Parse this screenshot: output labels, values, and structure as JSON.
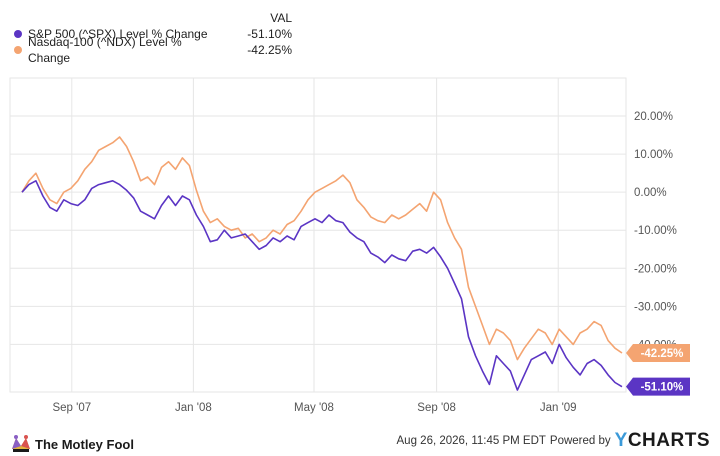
{
  "legend": {
    "header": "VAL",
    "items": [
      {
        "name": "S&P 500 (^SPX) Level % Change",
        "value": "-51.10%",
        "color": "#5b35c4"
      },
      {
        "name": "Nasdaq-100 (^NDX) Level % Change",
        "value": "-42.25%",
        "color": "#f4a471"
      }
    ]
  },
  "chart_data": {
    "type": "line",
    "title": "",
    "xlabel": "",
    "ylabel": "",
    "x_ticks": [
      "Sep '07",
      "Jan '08",
      "May '08",
      "Sep '08",
      "Jan '09"
    ],
    "x": [
      "2007-07-13",
      "2007-07-20",
      "2007-07-27",
      "2007-08-03",
      "2007-08-10",
      "2007-08-17",
      "2007-08-24",
      "2007-08-31",
      "2007-09-07",
      "2007-09-14",
      "2007-09-21",
      "2007-09-28",
      "2007-10-05",
      "2007-10-12",
      "2007-10-19",
      "2007-10-26",
      "2007-11-02",
      "2007-11-09",
      "2007-11-16",
      "2007-11-23",
      "2007-11-30",
      "2007-12-07",
      "2007-12-14",
      "2007-12-21",
      "2007-12-28",
      "2008-01-04",
      "2008-01-11",
      "2008-01-18",
      "2008-01-25",
      "2008-02-01",
      "2008-02-08",
      "2008-02-15",
      "2008-02-22",
      "2008-02-29",
      "2008-03-07",
      "2008-03-14",
      "2008-03-21",
      "2008-03-28",
      "2008-04-04",
      "2008-04-11",
      "2008-04-18",
      "2008-04-25",
      "2008-05-02",
      "2008-05-09",
      "2008-05-16",
      "2008-05-23",
      "2008-05-30",
      "2008-06-06",
      "2008-06-13",
      "2008-06-20",
      "2008-06-27",
      "2008-07-04",
      "2008-07-11",
      "2008-07-18",
      "2008-07-25",
      "2008-08-01",
      "2008-08-08",
      "2008-08-15",
      "2008-08-22",
      "2008-08-29",
      "2008-09-05",
      "2008-09-12",
      "2008-09-19",
      "2008-09-26",
      "2008-10-03",
      "2008-10-10",
      "2008-10-17",
      "2008-10-24",
      "2008-10-31",
      "2008-11-07",
      "2008-11-14",
      "2008-11-21",
      "2008-11-28",
      "2008-12-05",
      "2008-12-12",
      "2008-12-19",
      "2008-12-26",
      "2009-01-02",
      "2009-01-09",
      "2009-01-16",
      "2009-01-23",
      "2009-01-30",
      "2009-02-06",
      "2009-02-13",
      "2009-02-20",
      "2009-02-27",
      "2009-03-06"
    ],
    "series": [
      {
        "name": "S&P 500 (^SPX) Level % Change",
        "color": "#5b35c4",
        "values": [
          0.0,
          2.0,
          3.0,
          -1.0,
          -4.0,
          -5.0,
          -2.0,
          -3.0,
          -3.5,
          -2.0,
          1.0,
          2.0,
          2.5,
          3.0,
          2.0,
          0.5,
          -1.5,
          -5.0,
          -6.0,
          -7.0,
          -3.5,
          -1.0,
          -3.5,
          -1.0,
          -2.0,
          -6.0,
          -9.0,
          -13.0,
          -12.5,
          -10.0,
          -12.0,
          -11.5,
          -11.0,
          -13.0,
          -15.0,
          -14.0,
          -12.0,
          -13.0,
          -11.5,
          -12.5,
          -9.0,
          -8.0,
          -7.0,
          -8.0,
          -6.0,
          -7.5,
          -8.0,
          -10.5,
          -12.0,
          -13.0,
          -16.0,
          -17.0,
          -18.5,
          -16.5,
          -17.5,
          -18.0,
          -15.5,
          -15.0,
          -16.0,
          -14.5,
          -17.0,
          -20.0,
          -24.0,
          -28.0,
          -38.0,
          -43.0,
          -47.0,
          -50.5,
          -43.0,
          -45.0,
          -47.0,
          -52.0,
          -48.0,
          -44.0,
          -43.0,
          -42.0,
          -45.0,
          -40.0,
          -43.5,
          -46.0,
          -48.0,
          -45.0,
          -44.0,
          -45.5,
          -48.0,
          -50.0,
          -51.1
        ]
      },
      {
        "name": "Nasdaq-100 (^NDX) Level % Change",
        "color": "#f4a471",
        "values": [
          0.0,
          3.0,
          5.0,
          1.0,
          -2.0,
          -3.0,
          0.0,
          1.0,
          3.0,
          6.0,
          8.0,
          11.0,
          12.0,
          13.0,
          14.5,
          12.0,
          8.0,
          3.0,
          4.0,
          2.0,
          6.5,
          8.0,
          6.0,
          9.0,
          7.0,
          0.5,
          -5.0,
          -8.0,
          -7.0,
          -9.0,
          -10.0,
          -9.5,
          -12.0,
          -11.0,
          -13.0,
          -12.0,
          -10.0,
          -11.0,
          -8.5,
          -7.5,
          -5.0,
          -2.0,
          0.0,
          1.0,
          2.0,
          3.0,
          4.5,
          2.5,
          -2.0,
          -4.0,
          -6.5,
          -7.5,
          -8.0,
          -6.0,
          -7.0,
          -6.0,
          -4.5,
          -3.0,
          -5.0,
          0.0,
          -2.0,
          -8.0,
          -12.0,
          -15.0,
          -25.0,
          -30.0,
          -35.0,
          -40.0,
          -36.0,
          -37.0,
          -39.0,
          -44.0,
          -41.0,
          -38.5,
          -36.0,
          -37.0,
          -40.0,
          -36.0,
          -38.0,
          -40.0,
          -37.0,
          -36.0,
          -34.0,
          -35.0,
          -39.0,
          -41.0,
          -42.25
        ]
      }
    ],
    "end_labels": [
      "-42.25%",
      "-51.10%"
    ],
    "y_ticks": [
      "20.00%",
      "10.00%",
      "0.00%",
      "-10.00%",
      "-20.00%",
      "-30.00%",
      "-40.00%"
    ],
    "y_tick_values": [
      20,
      10,
      0,
      -10,
      -20,
      -30,
      -40
    ],
    "ylim": [
      -52.5,
      30
    ],
    "grid": true,
    "legend_position": "top-left"
  },
  "footer": {
    "brand": "The Motley Fool",
    "timestamp": "Aug 26, 2026, 11:45 PM EDT",
    "powered_by": "Powered by",
    "provider_y": "Y",
    "provider_rest": "CHARTS"
  }
}
